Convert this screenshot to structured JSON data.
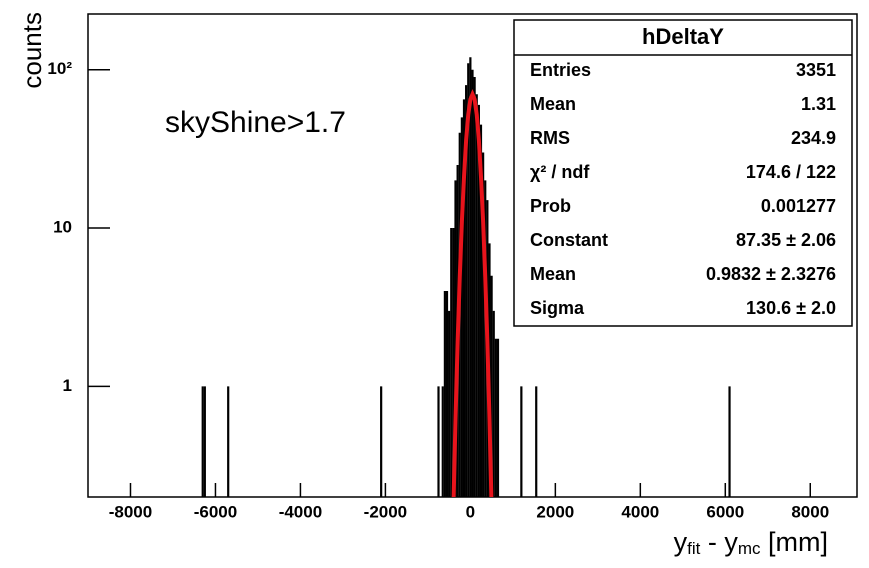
{
  "chart_data": {
    "type": "histogram",
    "y_label": "counts",
    "x_label": [
      "y",
      "fit",
      " - y",
      "mc",
      " [mm]"
    ],
    "annotation": "skyShine>1.7",
    "log_y": true,
    "xlim": [
      -9000,
      9100
    ],
    "ylim": [
      0.2,
      225
    ],
    "xticks": [
      -8000,
      -6000,
      -4000,
      -2000,
      0,
      2000,
      4000,
      6000,
      8000
    ],
    "yticks": [
      1,
      10,
      {
        "value": 100,
        "label": "10²"
      }
    ],
    "series": [
      {
        "color": "#000000",
        "x": [
          -6300,
          -6250,
          -5700,
          -2100,
          -750,
          -650,
          -600,
          -550,
          -500,
          -450,
          -400,
          -350,
          -300,
          -250,
          -200,
          -150,
          -100,
          -50,
          0,
          50,
          100,
          150,
          200,
          250,
          300,
          350,
          400,
          450,
          500,
          550,
          600,
          650,
          1200,
          1550,
          6100
        ],
        "values": [
          1,
          1,
          1,
          1,
          1,
          1,
          4,
          4,
          3,
          10,
          10,
          20,
          25,
          40,
          50,
          65,
          80,
          110,
          120,
          100,
          90,
          70,
          60,
          45,
          30,
          20,
          15,
          8,
          5,
          3,
          2,
          2,
          1,
          1,
          1
        ]
      },
      {
        "color": "#e8141c",
        "fit": true,
        "x": [
          -400,
          -350,
          -300,
          -250,
          -200,
          -150,
          -100,
          -50,
          0,
          50,
          100,
          150,
          200,
          250,
          300,
          350,
          400,
          450,
          500
        ],
        "values": [
          0.17,
          0.62,
          1.9,
          4.9,
          11,
          21,
          36,
          52,
          65,
          70,
          65,
          52,
          36,
          21,
          11,
          4.9,
          1.9,
          0.62,
          0.17
        ]
      }
    ],
    "stats": {
      "title": "hDeltaY",
      "rows": [
        [
          "Entries",
          "3351"
        ],
        [
          "Mean",
          "1.31"
        ],
        [
          "RMS",
          "234.9"
        ],
        [
          "χ² / ndf",
          "174.6 / 122"
        ],
        [
          "Prob",
          "0.001277"
        ],
        [
          "Constant",
          "87.35 ± 2.06"
        ],
        [
          "Mean",
          "0.9832 ± 2.3276"
        ],
        [
          "Sigma",
          "130.6 ± 2.0"
        ]
      ]
    }
  }
}
